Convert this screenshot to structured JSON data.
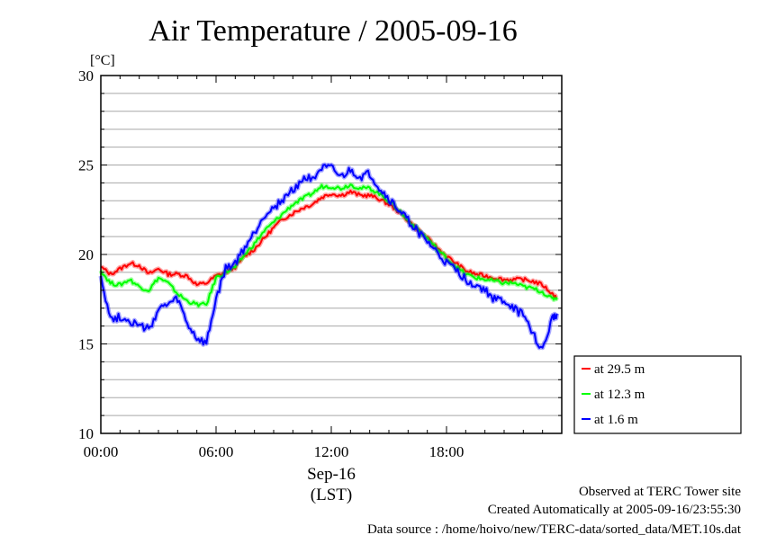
{
  "chart_data": {
    "type": "line",
    "title": "Air Temperature / 2005-09-16",
    "y_unit_label": "[°C]",
    "ylim": [
      10,
      30
    ],
    "y_ticks": [
      10,
      15,
      20,
      25,
      30
    ],
    "xlim": [
      "2005-09-16 00:00",
      "2005-09-17 00:00"
    ],
    "x_ticks": [
      "00:00",
      "06:00",
      "12:00",
      "18:00"
    ],
    "x_date_label": "Sep-16",
    "x_zone_label": "(LST)",
    "grid": "horizontal",
    "legend_position": "right",
    "series": [
      {
        "name": "at 29.5 m",
        "color": "#ff0000",
        "x": [
          "00:00",
          "00:30",
          "01:00",
          "01:30",
          "02:00",
          "02:30",
          "03:00",
          "03:30",
          "04:00",
          "04:30",
          "05:00",
          "05:30",
          "06:00",
          "06:30",
          "07:00",
          "07:30",
          "08:00",
          "08:30",
          "09:00",
          "09:30",
          "10:00",
          "10:30",
          "11:00",
          "11:30",
          "12:00",
          "12:30",
          "13:00",
          "13:30",
          "14:00",
          "14:30",
          "15:00",
          "15:30",
          "16:00",
          "16:30",
          "17:00",
          "17:30",
          "18:00",
          "18:30",
          "19:00",
          "19:30",
          "20:00",
          "20:30",
          "21:00",
          "21:30",
          "22:00",
          "22:30",
          "23:00",
          "23:30",
          "23:45"
        ],
        "y": [
          19.3,
          18.9,
          19.2,
          19.5,
          19.4,
          18.9,
          19.2,
          18.9,
          18.9,
          18.8,
          18.3,
          18.4,
          18.8,
          19.0,
          19.3,
          19.9,
          20.3,
          20.9,
          21.5,
          22.0,
          22.3,
          22.6,
          22.8,
          23.2,
          23.4,
          23.3,
          23.5,
          23.3,
          23.3,
          23.1,
          22.8,
          22.4,
          21.9,
          21.4,
          20.9,
          20.4,
          19.9,
          19.5,
          19.1,
          18.9,
          18.8,
          18.7,
          18.6,
          18.6,
          18.6,
          18.5,
          18.3,
          17.8,
          17.6
        ]
      },
      {
        "name": "at 12.3 m",
        "color": "#00ff00",
        "x": [
          "00:00",
          "00:30",
          "01:00",
          "01:30",
          "02:00",
          "02:30",
          "03:00",
          "03:30",
          "04:00",
          "04:30",
          "05:00",
          "05:30",
          "06:00",
          "06:30",
          "07:00",
          "07:30",
          "08:00",
          "08:30",
          "09:00",
          "09:30",
          "10:00",
          "10:30",
          "11:00",
          "11:30",
          "12:00",
          "12:30",
          "13:00",
          "13:30",
          "14:00",
          "14:30",
          "15:00",
          "15:30",
          "16:00",
          "16:30",
          "17:00",
          "17:30",
          "18:00",
          "18:30",
          "19:00",
          "19:30",
          "20:00",
          "20:30",
          "21:00",
          "21:30",
          "22:00",
          "22:30",
          "23:00",
          "23:30",
          "23:45"
        ],
        "y": [
          19.1,
          18.4,
          18.3,
          18.6,
          18.2,
          18.0,
          18.7,
          18.4,
          17.8,
          17.4,
          17.2,
          17.2,
          18.7,
          19.0,
          19.3,
          20.0,
          20.6,
          21.3,
          21.8,
          22.3,
          22.8,
          23.1,
          23.4,
          23.8,
          23.8,
          23.7,
          23.9,
          23.7,
          23.7,
          23.4,
          23.0,
          22.5,
          21.9,
          21.4,
          20.9,
          20.3,
          19.8,
          19.3,
          18.9,
          18.7,
          18.6,
          18.5,
          18.4,
          18.4,
          18.2,
          18.1,
          17.9,
          17.5,
          17.6
        ]
      },
      {
        "name": "at 1.6 m",
        "color": "#0000ff",
        "x": [
          "00:00",
          "00:30",
          "01:00",
          "01:30",
          "02:00",
          "02:30",
          "03:00",
          "03:30",
          "04:00",
          "04:30",
          "05:00",
          "05:30",
          "06:00",
          "06:30",
          "07:00",
          "07:30",
          "08:00",
          "08:30",
          "09:00",
          "09:30",
          "10:00",
          "10:30",
          "11:00",
          "11:30",
          "12:00",
          "12:30",
          "13:00",
          "13:30",
          "14:00",
          "14:30",
          "15:00",
          "15:30",
          "16:00",
          "16:30",
          "17:00",
          "17:30",
          "18:00",
          "18:30",
          "19:00",
          "19:30",
          "20:00",
          "20:30",
          "21:00",
          "21:30",
          "22:00",
          "22:30",
          "23:00",
          "23:30",
          "23:45"
        ],
        "y": [
          18.8,
          16.4,
          16.5,
          16.3,
          16.0,
          15.8,
          16.9,
          17.2,
          17.5,
          16.1,
          15.3,
          15.0,
          17.5,
          19.2,
          19.5,
          20.4,
          21.2,
          22.2,
          22.6,
          23.1,
          23.6,
          24.2,
          24.3,
          24.8,
          24.8,
          24.3,
          24.7,
          24.3,
          24.5,
          23.7,
          23.1,
          22.5,
          21.9,
          21.3,
          20.7,
          20.1,
          19.5,
          19.1,
          18.6,
          18.3,
          18.0,
          17.5,
          17.4,
          17.0,
          16.6,
          15.6,
          14.6,
          16.4,
          16.7
        ]
      }
    ]
  },
  "footer": {
    "line1": "Observed at TERC Tower site",
    "line2": "Created Automatically at 2005-09-16/23:55:30",
    "line3": "Data source : /home/hoivo/new/TERC-data/sorted_data/MET.10s.dat"
  }
}
